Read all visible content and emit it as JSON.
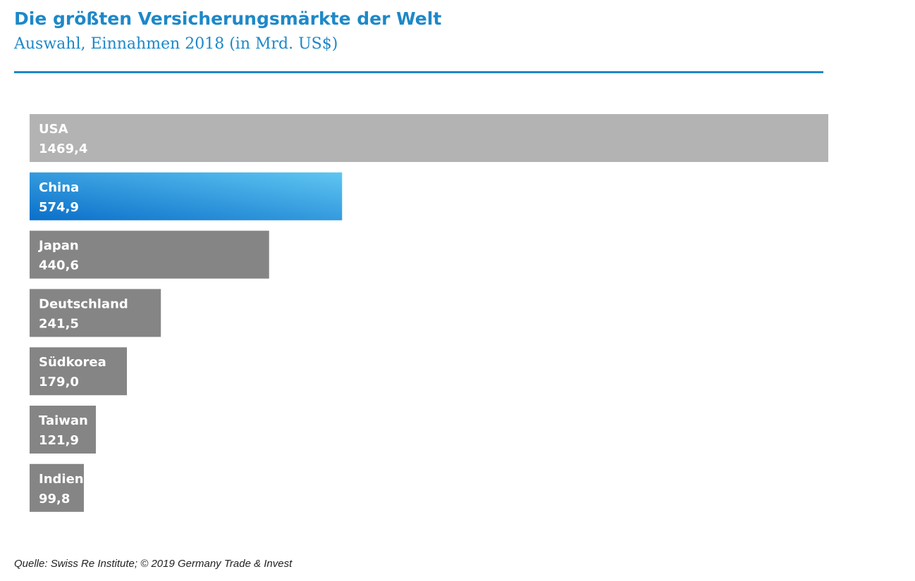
{
  "header": {
    "title": "Die größten Versicherungsmärkte der Welt",
    "subtitle": "Auswahl, Einnahmen 2018 (in Mrd. US$)"
  },
  "source": "Quelle: Swiss Re Institute; © 2019 Germany Trade & Invest",
  "colors": {
    "accent": "#1e88c8",
    "bar_usa": "#b3b3b3",
    "bar_default": "#858585",
    "highlight_start": "#0a6fc9",
    "highlight_end": "#5fc6f2"
  },
  "chart_data": {
    "type": "bar",
    "orientation": "horizontal",
    "title": "Die größten Versicherungsmärkte der Welt",
    "subtitle": "Auswahl, Einnahmen 2018 (in Mrd. US$)",
    "categories": [
      "USA",
      "China",
      "Japan",
      "Deutschland",
      "Südkorea",
      "Taiwan",
      "Indien"
    ],
    "values": [
      1469.4,
      574.9,
      440.6,
      241.5,
      179.0,
      121.9,
      99.8
    ],
    "value_labels": [
      "1469,4",
      "574,9",
      "440,6",
      "241,5",
      "179,0",
      "121,9",
      "99,8"
    ],
    "highlight": "China",
    "xlim": [
      0,
      1469.4
    ],
    "grid": false,
    "legend": "none"
  }
}
